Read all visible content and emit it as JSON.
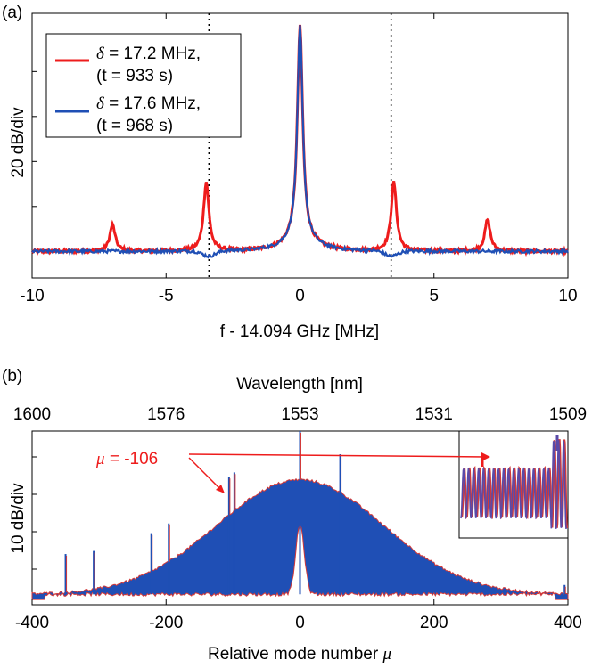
{
  "chart_data": [
    {
      "type": "line",
      "panel_label": "(a)",
      "xlabel": "f - 14.094 GHz [MHz]",
      "ylabel": "20 dB/div",
      "xlim": [
        -10,
        10
      ],
      "ylim": [
        0,
        100
      ],
      "xticks": [
        "-10",
        "-5",
        "0",
        "5",
        "10"
      ],
      "grid": false,
      "legend_position": "top-left",
      "vertical_dotted_lines_x": [
        -3.4,
        3.4
      ],
      "series": [
        {
          "legend_symbol": "δ",
          "legend_text": " = 17.2 MHz,",
          "legend_time": "(t = 933 s)",
          "color": "#ee1c1c",
          "baseline": 10,
          "peaks": [
            {
              "x": -7.0,
              "y": 20
            },
            {
              "x": -3.5,
              "y": 36
            },
            {
              "x": 0.0,
              "y": 90
            },
            {
              "x": 3.5,
              "y": 36
            },
            {
              "x": 7.0,
              "y": 22
            }
          ]
        },
        {
          "legend_symbol": "δ",
          "legend_text": " = 17.6 MHz,",
          "legend_time": "(t = 968 s)",
          "color": "#1f4fb5",
          "baseline": 10,
          "peaks": [
            {
              "x": 0.0,
              "y": 90
            }
          ],
          "dips": [
            {
              "x": -3.4,
              "y": 8
            },
            {
              "x": 3.4,
              "y": 8
            }
          ]
        }
      ]
    },
    {
      "type": "area",
      "panel_label": "(b)",
      "xlabel": "Relative mode number ",
      "xlabel_symbol": "μ",
      "ylabel": "10 dB/div",
      "top_xlabel": "Wavelength [nm]",
      "xlim": [
        -400,
        400
      ],
      "xticks": [
        "-400",
        "-200",
        "0",
        "200",
        "400"
      ],
      "top_xticks": [
        "1600",
        "1576",
        "1553",
        "1531",
        "1509"
      ],
      "top_xticks_mu": [
        -400,
        -200,
        0,
        200,
        400
      ],
      "ylim": [
        0,
        100
      ],
      "annotation": {
        "symbol": "μ",
        "text": " = -106",
        "color": "#ee1c1c"
      },
      "series": [
        {
          "name": "",
          "color": "#1f4fb5",
          "envelope_peak_mu": 0,
          "envelope_peak_y": 72,
          "spike_mu": [
            -350,
            -308,
            -222,
            -196,
            -106,
            -98,
            0,
            60,
            395
          ]
        }
      ],
      "inset": true
    }
  ]
}
